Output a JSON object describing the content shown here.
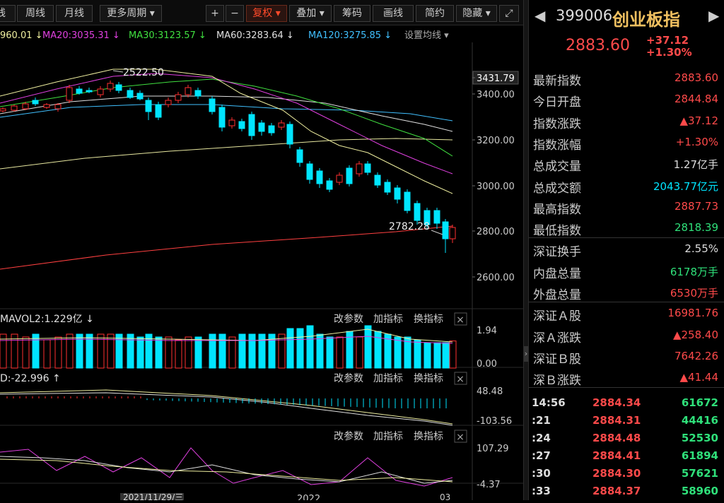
{
  "toolbar": {
    "buttons": [
      {
        "label": "线",
        "active": false
      },
      {
        "label": "周线",
        "active": false
      },
      {
        "label": "月线",
        "active": false
      },
      {
        "label": "更多周期 ▾",
        "active": false
      },
      {
        "label": "+",
        "active": false
      },
      {
        "label": "−",
        "active": false
      },
      {
        "label": "复权 ▾",
        "active": true
      },
      {
        "label": "叠加 ▾",
        "active": false
      },
      {
        "label": "筹码",
        "active": false
      },
      {
        "label": "画线",
        "active": false
      },
      {
        "label": "简约",
        "active": false
      },
      {
        "label": "隐藏 ▾",
        "active": false
      },
      {
        "label": "⤢",
        "active": false
      }
    ]
  },
  "ma_legend": [
    {
      "text": "960.01 ↓",
      "color": "#f0f0a0"
    },
    {
      "text": "MA20:3035.31 ↓",
      "color": "#e040e0"
    },
    {
      "text": "MA30:3123.57 ↓",
      "color": "#40e040"
    },
    {
      "text": "MA60:3283.64 ↓",
      "color": "#e0e0e0"
    },
    {
      "text": "MA120:3275.85 ↓",
      "color": "#40c0ff"
    },
    {
      "text": "设置均线 ▾",
      "color": "#aaaaaa"
    }
  ],
  "price_axis": [
    "3431.79",
    "3400.00",
    "3200.00",
    "3000.00",
    "2800.00",
    "2600.00"
  ],
  "annotations": {
    "high": "2522.50",
    "low": "2782.28"
  },
  "vol_panel": {
    "label": "MAVOL2:1.229亿 ↓",
    "axis": [
      "1.94",
      "0.00"
    ]
  },
  "macd_panel": {
    "label": "D:-22.996 ↑",
    "axis": [
      "48.48",
      "-103.56"
    ]
  },
  "kdj_panel": {
    "axis": [
      "107.29",
      "-4.37"
    ]
  },
  "panel_buttons": {
    "params": "改参数",
    "add": "加指标",
    "swap": "换指标",
    "close": "×"
  },
  "date_axis": [
    "2021/11/29/三",
    "2022",
    "03"
  ],
  "quote": {
    "nav_prev": "◀",
    "nav_next": "▶",
    "code": "399006",
    "name": "创业板指",
    "price": "2883.60",
    "change": "+37.12",
    "change_pct": "+1.30%"
  },
  "stats": [
    {
      "label": "最新指数",
      "value": "2883.60",
      "color": "red"
    },
    {
      "label": "今日开盘",
      "value": "2844.84",
      "color": "red"
    },
    {
      "label": "指数涨跌",
      "value": "▲37.12",
      "color": "red"
    },
    {
      "label": "指数涨幅",
      "value": "+1.30%",
      "color": "red"
    },
    {
      "label": "总成交量",
      "value": "1.27亿手",
      "color": "white"
    },
    {
      "label": "总成交额",
      "value": "2043.77亿元",
      "color": "cyan"
    },
    {
      "label": "最高指数",
      "value": "2887.73",
      "color": "red"
    },
    {
      "label": "最低指数",
      "value": "2818.39",
      "color": "green"
    },
    {
      "label": "深证换手",
      "value": "2.55%",
      "color": "white"
    },
    {
      "label": "内盘总量",
      "value": "6178万手",
      "color": "green"
    },
    {
      "label": "外盘总量",
      "value": "6530万手",
      "color": "red"
    },
    {
      "label": "深证Ａ股",
      "value": "16981.76",
      "color": "red"
    },
    {
      "label": "深Ａ涨跌",
      "value": "▲258.40",
      "color": "red"
    },
    {
      "label": "深证Ｂ股",
      "value": "7642.26",
      "color": "red"
    },
    {
      "label": "深Ｂ涨跌",
      "value": "▲41.44",
      "color": "red"
    }
  ],
  "ticks": [
    {
      "time": "14:56",
      "price": "2884.34",
      "vol": "61672"
    },
    {
      "time": ":21",
      "price": "2884.31",
      "vol": "44416"
    },
    {
      "time": ":24",
      "price": "2884.48",
      "vol": "52530"
    },
    {
      "time": ":27",
      "price": "2884.41",
      "vol": "61894"
    },
    {
      "time": ":30",
      "price": "2884.30",
      "vol": "57621"
    },
    {
      "time": ":33",
      "price": "2884.37",
      "vol": "58960"
    }
  ],
  "colors": {
    "up": "#ff3030",
    "down": "#00e5ff",
    "vol_up": "#ff3030",
    "vol_down": "#00e5ff"
  }
}
